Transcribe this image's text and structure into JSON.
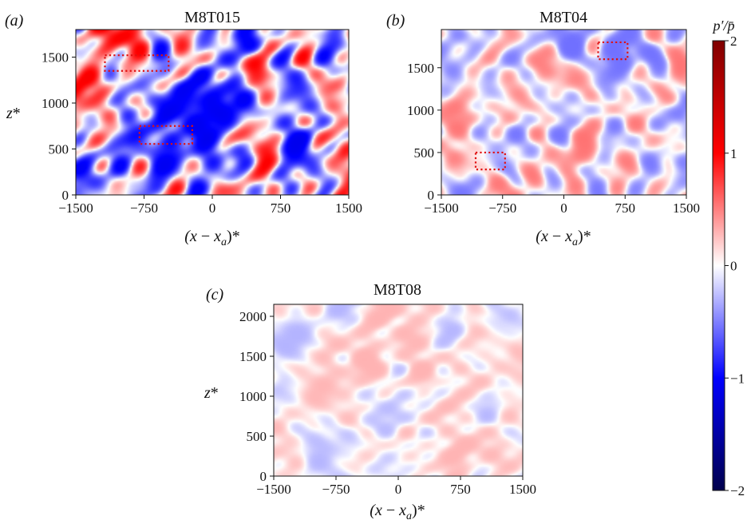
{
  "chart_data": [
    {
      "type": "heatmap",
      "panel": "(a)",
      "title": "M8T015",
      "xlabel": "(x − x_a)*",
      "ylabel": "z*",
      "xlim": [
        -1500,
        1500
      ],
      "ylim": [
        0,
        1800
      ],
      "xticks": [
        "−1500",
        "−750",
        "0",
        "750",
        "1500"
      ],
      "xtick_values": [
        -1500,
        -750,
        0,
        750,
        1500
      ],
      "yticks": [
        "0",
        "500",
        "1000",
        "1500"
      ],
      "ytick_values": [
        0,
        500,
        1000,
        1500
      ],
      "field_amplitude": 0.55,
      "seed": 11,
      "highlight_boxes": [
        {
          "x": [
            -1180,
            -480
          ],
          "z": [
            1350,
            1520
          ]
        },
        {
          "x": [
            -800,
            -220
          ],
          "z": [
            555,
            750
          ]
        }
      ]
    },
    {
      "type": "heatmap",
      "panel": "(b)",
      "title": "M8T04",
      "xlabel": "(x − x_a)*",
      "ylabel": "",
      "xlim": [
        -1500,
        1500
      ],
      "ylim": [
        0,
        1950
      ],
      "xticks": [
        "−1500",
        "−750",
        "0",
        "750",
        "1500"
      ],
      "xtick_values": [
        -1500,
        -750,
        0,
        750,
        1500
      ],
      "yticks": [
        "0",
        "500",
        "1000",
        "1500"
      ],
      "ytick_values": [
        0,
        500,
        1000,
        1500
      ],
      "field_amplitude": 0.28,
      "seed": 23,
      "highlight_boxes": [
        {
          "x": [
            -1080,
            -720
          ],
          "z": [
            300,
            500
          ]
        },
        {
          "x": [
            420,
            780
          ],
          "z": [
            1600,
            1800
          ]
        }
      ]
    },
    {
      "type": "heatmap",
      "panel": "(c)",
      "title": "M8T08",
      "xlabel": "(x − x_a)*",
      "ylabel": "z*",
      "xlim": [
        -1500,
        1500
      ],
      "ylim": [
        0,
        2150
      ],
      "xticks": [
        "−1500",
        "−750",
        "0",
        "750",
        "1500"
      ],
      "xtick_values": [
        -1500,
        -750,
        0,
        750,
        1500
      ],
      "yticks": [
        "0",
        "500",
        "1000",
        "1500",
        "2000"
      ],
      "ytick_values": [
        0,
        500,
        1000,
        1500,
        2000
      ],
      "field_amplitude": 0.15,
      "seed": 37,
      "highlight_boxes": []
    }
  ],
  "colorbar": {
    "label": "p′/p̄",
    "range": [
      -2,
      2
    ],
    "ticks": [
      "2",
      "1",
      "0",
      "−1",
      "−2"
    ],
    "tick_values": [
      2,
      1,
      0,
      -1,
      -2
    ],
    "colormap": "seismic",
    "colors": {
      "low": "#00004c",
      "mid": "#ffffff",
      "high": "#800000"
    }
  }
}
